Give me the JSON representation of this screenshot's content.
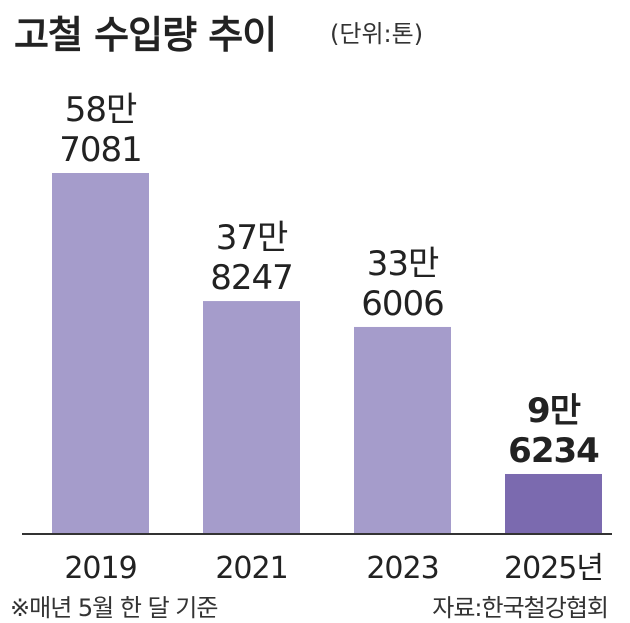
{
  "title": "고철 수입량 추이",
  "unit_note": "(단위:톤)",
  "footnote": "※매년 5월 한 달 기준",
  "source": "자료:한국철강협회",
  "chart_data": {
    "type": "bar",
    "categories": [
      "2019",
      "2021",
      "2023",
      "2025년"
    ],
    "values": [
      587081,
      378247,
      336006,
      96234
    ],
    "data_labels": [
      [
        "58만",
        "7081"
      ],
      [
        "37만",
        "8247"
      ],
      [
        "33만",
        "6006"
      ],
      [
        "9만",
        "6234"
      ]
    ],
    "highlight_index": 3,
    "colors": {
      "bar": "#a59ccb",
      "highlight": "#7b6aaf",
      "axis": "#333333"
    },
    "ylim": [
      0,
      587081
    ],
    "grid": false
  }
}
